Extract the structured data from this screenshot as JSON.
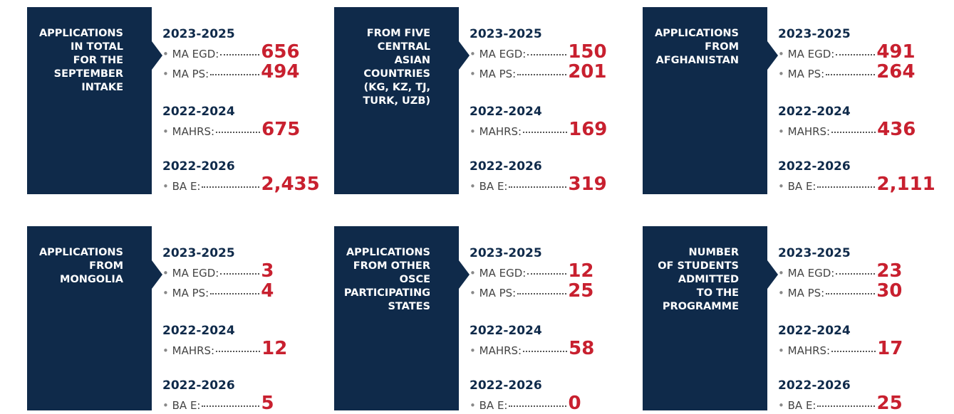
{
  "cards": [
    {
      "title": [
        "APPLICATIONS",
        "IN TOTAL",
        "FOR THE",
        "SEPTEMBER",
        "INTAKE"
      ],
      "groups": [
        {
          "period": "2023-2025",
          "items": [
            {
              "label": "MA EGD:",
              "value": "656"
            },
            {
              "label": "MA PS:",
              "value": "494"
            }
          ]
        },
        {
          "period": "2022-2024",
          "items": [
            {
              "label": "MAHRS:",
              "value": "675"
            }
          ]
        },
        {
          "period": "2022-2026",
          "items": [
            {
              "label": "BA E:",
              "value": "2,435"
            }
          ]
        }
      ]
    },
    {
      "title": [
        "FROM FIVE",
        "CENTRAL",
        "ASIAN",
        "COUNTRIES",
        "(KG, KZ, TJ,",
        "TURK, UZB)"
      ],
      "groups": [
        {
          "period": "2023-2025",
          "items": [
            {
              "label": "MA EGD:",
              "value": "150"
            },
            {
              "label": "MA PS:",
              "value": "201"
            }
          ]
        },
        {
          "period": "2022-2024",
          "items": [
            {
              "label": "MAHRS:",
              "value": "169"
            }
          ]
        },
        {
          "period": "2022-2026",
          "items": [
            {
              "label": "BA E:",
              "value": "319"
            }
          ]
        }
      ]
    },
    {
      "title": [
        "APPLICATIONS",
        "FROM",
        "AFGHANISTAN"
      ],
      "groups": [
        {
          "period": "2023-2025",
          "items": [
            {
              "label": "MA EGD:",
              "value": "491"
            },
            {
              "label": "MA PS:",
              "value": "264"
            }
          ]
        },
        {
          "period": "2022-2024",
          "items": [
            {
              "label": "MAHRS:",
              "value": "436"
            }
          ]
        },
        {
          "period": "2022-2026",
          "items": [
            {
              "label": "BA E:",
              "value": "2,111"
            }
          ]
        }
      ]
    },
    {
      "title": [
        "APPLICATIONS",
        "FROM",
        "MONGOLIA"
      ],
      "groups": [
        {
          "period": "2023-2025",
          "items": [
            {
              "label": "MA EGD:",
              "value": "3"
            },
            {
              "label": "MA PS:",
              "value": "4"
            }
          ]
        },
        {
          "period": "2022-2024",
          "items": [
            {
              "label": "MAHRS:",
              "value": "12"
            }
          ]
        },
        {
          "period": "2022-2026",
          "items": [
            {
              "label": "BA E:",
              "value": "5"
            }
          ]
        }
      ]
    },
    {
      "title": [
        "APPLICATIONS",
        "FROM OTHER",
        "OSCE",
        "PARTICIPATING",
        "STATES"
      ],
      "groups": [
        {
          "period": "2023-2025",
          "items": [
            {
              "label": "MA EGD:",
              "value": "12"
            },
            {
              "label": "MA PS:",
              "value": "25"
            }
          ]
        },
        {
          "period": "2022-2024",
          "items": [
            {
              "label": "MAHRS:",
              "value": "58"
            }
          ]
        },
        {
          "period": "2022-2026",
          "items": [
            {
              "label": "BA E:",
              "value": "0"
            }
          ]
        }
      ]
    },
    {
      "title": [
        "NUMBER",
        "OF STUDENTS",
        "ADMITTED",
        "TO THE",
        "PROGRAMME"
      ],
      "groups": [
        {
          "period": "2023-2025",
          "items": [
            {
              "label": "MA EGD:",
              "value": "23"
            },
            {
              "label": "MA PS:",
              "value": "30"
            }
          ]
        },
        {
          "period": "2022-2024",
          "items": [
            {
              "label": "MAHRS:",
              "value": "17"
            }
          ]
        },
        {
          "period": "2022-2026",
          "items": [
            {
              "label": "BA E:",
              "value": "25"
            }
          ]
        }
      ]
    }
  ]
}
